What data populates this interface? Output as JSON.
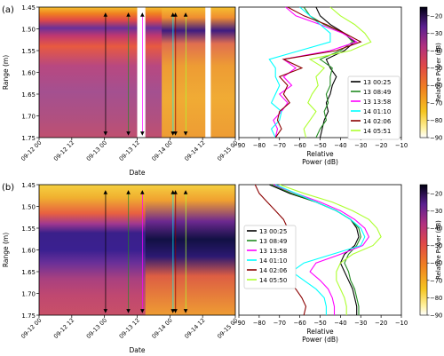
{
  "chart_data": [
    {
      "panel_label": "(a)",
      "type": "heatmap",
      "title": "",
      "xlabel": "Date",
      "ylabel": "Range (m)",
      "x_ticks": [
        "09-12 00",
        "09-12 12",
        "09-13 00",
        "09-13 12",
        "09-14 00",
        "09-14 12",
        "09-15 00"
      ],
      "y_ticks": [
        "1.45",
        "1.50",
        "1.55",
        "1.60",
        "1.65",
        "1.70",
        "1.75"
      ],
      "xlim": [
        "09-12 00",
        "09-15 00"
      ],
      "ylim": [
        1.75,
        1.45
      ],
      "data_gaps": [
        [
          "09-13 12",
          "09-13 15"
        ],
        [
          "09-14 13",
          "09-14 15"
        ]
      ],
      "profile_markers": [
        {
          "time": "13 00:25",
          "color": "#000000"
        },
        {
          "time": "13 08:49",
          "color": "#228b22"
        },
        {
          "time": "13 13:58",
          "color": "#ff00ff"
        },
        {
          "time": "14 01:10",
          "color": "#00ffff"
        },
        {
          "time": "14 02:06",
          "color": "#8b0000"
        },
        {
          "time": "14 05:51",
          "color": "#adff2f"
        }
      ],
      "surface_band_m": [
        1.47,
        1.53
      ],
      "bottom_band_m": [
        1.55,
        1.75
      ]
    },
    {
      "panel_label": "(a)",
      "type": "line",
      "xlabel": "Relative\nPower (dB)",
      "ylabel": "",
      "xlim": [
        -90,
        -10
      ],
      "ylim": [
        1.75,
        1.45
      ],
      "x_ticks": [
        "−90",
        "−80",
        "−70",
        "−60",
        "−50",
        "−40",
        "−30",
        "−20",
        "−10"
      ],
      "legend_position": "center-right",
      "y": [
        1.45,
        1.47,
        1.49,
        1.51,
        1.53,
        1.55,
        1.57,
        1.59,
        1.61,
        1.63,
        1.65,
        1.67,
        1.69,
        1.71,
        1.73,
        1.75
      ],
      "series": [
        {
          "name": "13 00:25",
          "color": "#000000",
          "values": [
            -52,
            -50,
            -45,
            -38,
            -33,
            -38,
            -47,
            -45,
            -42,
            -44,
            -45,
            -47,
            -46,
            -48,
            -49,
            -50
          ]
        },
        {
          "name": "13 08:49",
          "color": "#228b22",
          "values": [
            -58,
            -55,
            -48,
            -38,
            -34,
            -40,
            -50,
            -44,
            -45,
            -45,
            -47,
            -46,
            -48,
            -47,
            -50,
            -52
          ]
        },
        {
          "name": "13 13:58",
          "color": "#ff00ff",
          "values": [
            -67,
            -62,
            -50,
            -39,
            -32,
            -45,
            -68,
            -62,
            -68,
            -64,
            -70,
            -66,
            -69,
            -73,
            -71,
            -72
          ]
        },
        {
          "name": "14 01:10",
          "color": "#00ffff",
          "values": [
            -60,
            -55,
            -50,
            -45,
            -45,
            -60,
            -75,
            -72,
            -72,
            -70,
            -72,
            -74,
            -69,
            -70,
            -74,
            -72
          ]
        },
        {
          "name": "14 02:06",
          "color": "#8b0000",
          "values": [
            -66,
            -58,
            -47,
            -38,
            -30,
            -42,
            -68,
            -59,
            -70,
            -66,
            -68,
            -65,
            -70,
            -71,
            -69,
            -72
          ]
        },
        {
          "name": "14 05:51",
          "color": "#adff2f",
          "values": [
            -45,
            -40,
            -33,
            -28,
            -25,
            -35,
            -55,
            -48,
            -52,
            -51,
            -54,
            -56,
            -52,
            -55,
            -58,
            -57
          ]
        }
      ],
      "colorbar": {
        "label": "Relative Power (dB)",
        "ticks": [
          "−20",
          "−30",
          "−40",
          "−50",
          "−60",
          "−70",
          "−80",
          "−90"
        ],
        "range": [
          -90,
          -15
        ]
      }
    },
    {
      "panel_label": "(b)",
      "type": "heatmap",
      "title": "",
      "xlabel": "Date",
      "ylabel": "Range (m)",
      "x_ticks": [
        "09-12 00",
        "09-12 12",
        "09-13 00",
        "09-13 12",
        "09-14 00",
        "09-14 12",
        "09-15 00"
      ],
      "y_ticks": [
        "1.45",
        "1.50",
        "1.55",
        "1.60",
        "1.65",
        "1.70",
        "1.75"
      ],
      "xlim": [
        "09-12 00",
        "09-15 00"
      ],
      "ylim": [
        1.75,
        1.45
      ],
      "profile_markers": [
        {
          "time": "13 00:25",
          "color": "#000000"
        },
        {
          "time": "13 08:49",
          "color": "#228b22"
        },
        {
          "time": "13 13:58",
          "color": "#ff00ff"
        },
        {
          "time": "14 01:10",
          "color": "#00ffff"
        },
        {
          "time": "14 02:06",
          "color": "#8b0000"
        },
        {
          "time": "14 05:50",
          "color": "#adff2f"
        }
      ],
      "surface_band_m": [
        1.53,
        1.63
      ]
    },
    {
      "panel_label": "(b)",
      "type": "line",
      "xlabel": "Relative\nPower (dB)",
      "ylabel": "",
      "xlim": [
        -90,
        -10
      ],
      "ylim": [
        1.75,
        1.45
      ],
      "x_ticks": [
        "−90",
        "−80",
        "−70",
        "−60",
        "−50",
        "−40",
        "−30",
        "−20",
        "−10"
      ],
      "legend_position": "upper-left",
      "y": [
        1.45,
        1.47,
        1.49,
        1.51,
        1.53,
        1.55,
        1.57,
        1.59,
        1.61,
        1.63,
        1.65,
        1.67,
        1.69,
        1.71,
        1.73,
        1.75
      ],
      "series": [
        {
          "name": "13 00:25",
          "color": "#000000",
          "values": [
            -75,
            -65,
            -52,
            -42,
            -35,
            -32,
            -31,
            -33,
            -38,
            -40,
            -38,
            -36,
            -34,
            -33,
            -32,
            -32
          ]
        },
        {
          "name": "13 08:49",
          "color": "#228b22",
          "values": [
            -74,
            -64,
            -52,
            -42,
            -35,
            -31,
            -30,
            -32,
            -36,
            -38,
            -36,
            -35,
            -33,
            -32,
            -31,
            -31
          ]
        },
        {
          "name": "13 13:58",
          "color": "#ff00ff",
          "values": [
            -73,
            -62,
            -50,
            -40,
            -33,
            -28,
            -26,
            -29,
            -40,
            -52,
            -55,
            -50,
            -46,
            -44,
            -43,
            -43
          ]
        },
        {
          "name": "14 01:10",
          "color": "#00ffff",
          "values": [
            -72,
            -62,
            -52,
            -42,
            -35,
            -30,
            -28,
            -30,
            -44,
            -58,
            -64,
            -58,
            -52,
            -48,
            -47,
            -47
          ]
        },
        {
          "name": "14 02:06",
          "color": "#8b0000",
          "values": [
            -82,
            -80,
            -76,
            -72,
            -68,
            -66,
            -68,
            -74,
            -78,
            -76,
            -72,
            -66,
            -62,
            -59,
            -57,
            -58
          ]
        },
        {
          "name": "14 05:50",
          "color": "#adff2f",
          "values": [
            -70,
            -58,
            -44,
            -34,
            -26,
            -22,
            -20,
            -24,
            -34,
            -40,
            -42,
            -42,
            -40,
            -38,
            -37,
            -37
          ]
        }
      ],
      "colorbar": {
        "label": "Relative Power (dB)",
        "ticks": [
          "−20",
          "−30",
          "−40",
          "−50",
          "−60",
          "−70",
          "−80",
          "−90"
        ],
        "range": [
          -90,
          -15
        ]
      }
    }
  ]
}
